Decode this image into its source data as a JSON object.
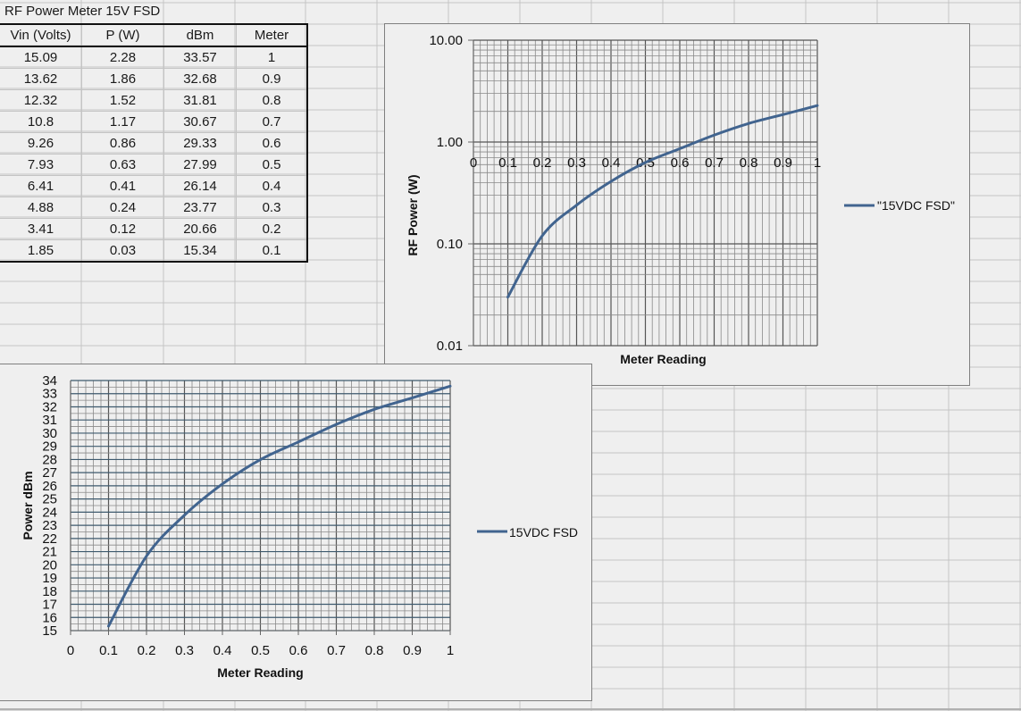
{
  "sheet": {
    "title": "RF Power Meter 15V FSD",
    "table": {
      "headers": [
        "Vin (Volts)",
        "P (W)",
        "dBm",
        "Meter"
      ],
      "rows": [
        [
          "15.09",
          "2.28",
          "33.57",
          "1"
        ],
        [
          "13.62",
          "1.86",
          "32.68",
          "0.9"
        ],
        [
          "12.32",
          "1.52",
          "31.81",
          "0.8"
        ],
        [
          "10.8",
          "1.17",
          "30.67",
          "0.7"
        ],
        [
          "9.26",
          "0.86",
          "29.33",
          "0.6"
        ],
        [
          "7.93",
          "0.63",
          "27.99",
          "0.5"
        ],
        [
          "6.41",
          "0.41",
          "26.14",
          "0.4"
        ],
        [
          "4.88",
          "0.24",
          "23.77",
          "0.3"
        ],
        [
          "3.41",
          "0.12",
          "20.66",
          "0.2"
        ],
        [
          "1.85",
          "0.03",
          "15.34",
          "0.1"
        ]
      ]
    }
  },
  "colors": {
    "series": "#41648f",
    "grid_major": "#555555",
    "grid_minor": "#8a8a8a",
    "grid_major_h_dbm": "#3e5a6e",
    "frame": "#7f7f7f",
    "background": "#efefef",
    "cell_grid": "#c4c4c4"
  },
  "chart_data": [
    {
      "type": "line",
      "id": "rf-power-log",
      "title": "",
      "xlabel": "Meter Reading",
      "ylabel": "RF Power (W)",
      "yscale": "log",
      "ylim": [
        0.01,
        10
      ],
      "xlim": [
        0,
        1
      ],
      "y_ticks": [
        "10.00",
        "1.00",
        "0.10",
        "0.01"
      ],
      "x_ticks": [
        "0",
        "0.1",
        "0.2",
        "0.3",
        "0.4",
        "0.5",
        "0.6",
        "0.7",
        "0.8",
        "0.9",
        "1"
      ],
      "x_ticks_position": "crosses at y=1.00",
      "grid": true,
      "legend": {
        "position": "right",
        "entries": [
          "\"15VDC FSD\""
        ]
      },
      "series": [
        {
          "name": "\"15VDC FSD\"",
          "x": [
            0.1,
            0.2,
            0.3,
            0.4,
            0.5,
            0.6,
            0.7,
            0.8,
            0.9,
            1.0
          ],
          "values": [
            0.03,
            0.12,
            0.24,
            0.41,
            0.63,
            0.86,
            1.17,
            1.52,
            1.86,
            2.28
          ]
        }
      ]
    },
    {
      "type": "line",
      "id": "power-dbm",
      "title": "",
      "xlabel": "Meter Reading",
      "ylabel": "Power dBm",
      "ylim": [
        15,
        34
      ],
      "xlim": [
        0,
        1
      ],
      "y_ticks": [
        "15",
        "16",
        "17",
        "18",
        "19",
        "20",
        "21",
        "22",
        "23",
        "24",
        "25",
        "26",
        "27",
        "28",
        "29",
        "30",
        "31",
        "32",
        "33",
        "34"
      ],
      "x_ticks": [
        "0",
        "0.1",
        "0.2",
        "0.3",
        "0.4",
        "0.5",
        "0.6",
        "0.7",
        "0.8",
        "0.9",
        "1"
      ],
      "grid": true,
      "legend": {
        "position": "right",
        "entries": [
          "15VDC FSD"
        ]
      },
      "series": [
        {
          "name": "15VDC FSD",
          "x": [
            0.1,
            0.2,
            0.3,
            0.4,
            0.5,
            0.6,
            0.7,
            0.8,
            0.9,
            1.0
          ],
          "values": [
            15.34,
            20.66,
            23.77,
            26.14,
            27.99,
            29.33,
            30.67,
            31.81,
            32.68,
            33.57
          ]
        }
      ]
    }
  ]
}
